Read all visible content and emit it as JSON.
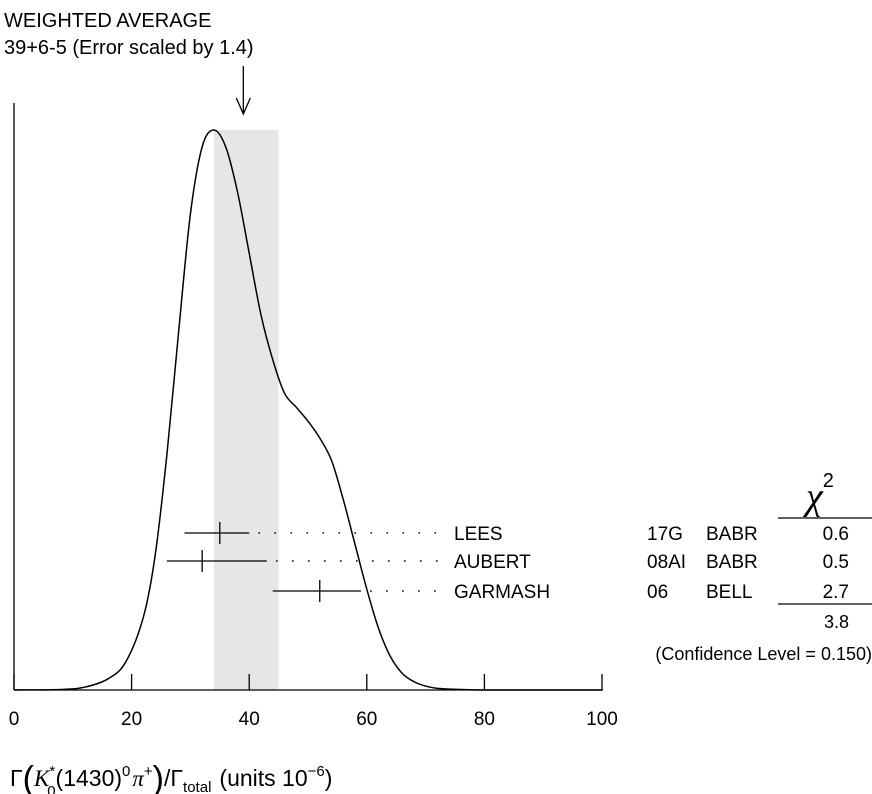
{
  "chart_data": {
    "type": "ideogram",
    "title": "WEIGHTED AVERAGE",
    "subtitle": "39+6-5 (Error scaled by 1.4)",
    "weighted_average": {
      "value": 39,
      "err_plus": 6,
      "err_minus": 5
    },
    "band": [
      34,
      45
    ],
    "xlim": [
      0,
      100
    ],
    "xticks": [
      0,
      20,
      40,
      60,
      80,
      100
    ],
    "xtick_labels": [
      "0",
      "20",
      "40",
      "60",
      "80",
      "100"
    ],
    "xlabel": {
      "gamma": "Γ",
      "k": "K",
      "k_sup": "*",
      "k_sub": "0",
      "mass": "(1430)",
      "zero": "0",
      "pi": "π",
      "pi_sup": "+",
      "total": "Γ",
      "total_sub": "total",
      "units": "(units 10",
      "units_exp": "−6",
      "units_close": ")"
    },
    "ideogram_curve": {
      "x": [
        0,
        8,
        12,
        16,
        19,
        22,
        24,
        26,
        28,
        30,
        32,
        34,
        36,
        38,
        40,
        42,
        44,
        46,
        48,
        50,
        52,
        54,
        56,
        58,
        60,
        62,
        64,
        66,
        68,
        70,
        72,
        76,
        82,
        100
      ],
      "y": [
        0,
        0.001,
        0.005,
        0.02,
        0.05,
        0.13,
        0.24,
        0.42,
        0.64,
        0.85,
        0.97,
        1.0,
        0.97,
        0.89,
        0.78,
        0.67,
        0.59,
        0.53,
        0.505,
        0.48,
        0.45,
        0.41,
        0.34,
        0.26,
        0.18,
        0.11,
        0.06,
        0.03,
        0.015,
        0.007,
        0.003,
        0.001,
        0,
        0
      ]
    },
    "chi2_header": "χ",
    "chi2_header_sup": "2",
    "measurements": [
      {
        "name": "LEES",
        "ref": "17G",
        "experiment": "BABR",
        "value": 35,
        "low": 29,
        "high": 40,
        "chi2": "0.6"
      },
      {
        "name": "AUBERT",
        "ref": "08AI",
        "experiment": "BABR",
        "value": 32,
        "low": 26,
        "high": 43,
        "chi2": "0.5"
      },
      {
        "name": "GARMASH",
        "ref": "06",
        "experiment": "BELL",
        "value": 52,
        "low": 44,
        "high": 59,
        "chi2": "2.7"
      }
    ],
    "chi2_total": "3.8",
    "confidence_level": "(Confidence Level = 0.150)",
    "grid": false
  },
  "colors": {
    "band": "#e6e6e6",
    "line": "#000000"
  }
}
